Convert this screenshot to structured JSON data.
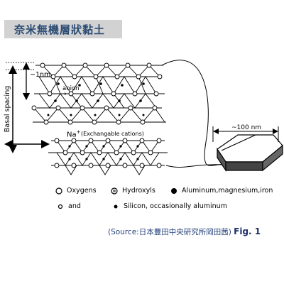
{
  "title": "奈米無機層狀黏土",
  "labels": {
    "nm1": "~1nm",
    "anion": "anion",
    "basal": "Basal spacing",
    "na": "Na",
    "na_sup": "+",
    "exch": "(Exchangable cations)",
    "nm100": "~100 nm"
  },
  "legend": {
    "oxygens": "Oxygens",
    "hydroxyls": "Hydroxyls",
    "aluminum": "Aluminum,magnesium,iron",
    "and": "and",
    "silicon": "Silicon, occasionally aluminum"
  },
  "source": {
    "text": "(Source:日本豐田中央研究所岡田茜)",
    "fig": "Fig. 1"
  },
  "colors": {
    "title_bg": "#d2d2d2",
    "title_text": "#2b4b73",
    "source_text": "#24407a"
  }
}
